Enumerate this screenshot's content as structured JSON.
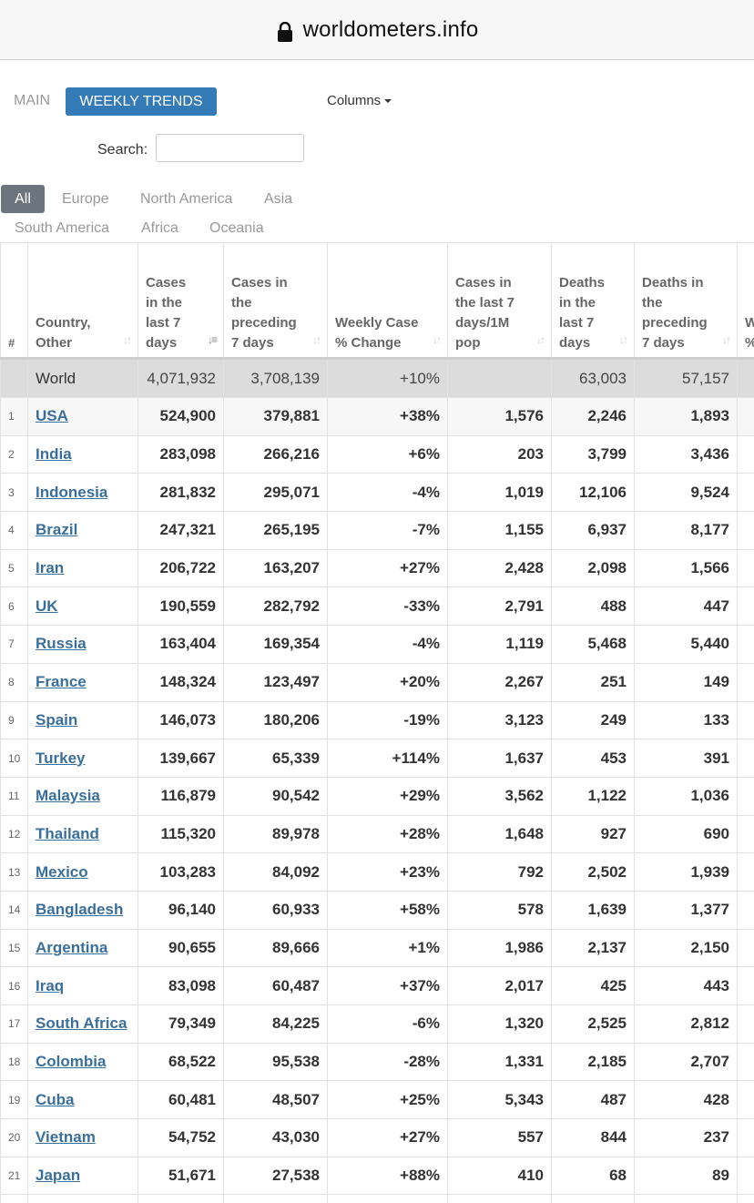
{
  "browser": {
    "url": "worldometers.info"
  },
  "tabs": {
    "main": "MAIN",
    "weekly": "WEEKLY TRENDS",
    "columns": "Columns"
  },
  "search": {
    "label": "Search:",
    "value": "",
    "placeholder": ""
  },
  "regions": [
    "All",
    "Europe",
    "North America",
    "Asia",
    "South America",
    "Africa",
    "Oceania"
  ],
  "table": {
    "headers": [
      {
        "label": "#",
        "sortable": false
      },
      {
        "label": "Country, Other",
        "sortable": true
      },
      {
        "label": "Cases in the last 7 days",
        "sortable": true,
        "active": true
      },
      {
        "label": "Cases in the preceding 7 days",
        "sortable": true
      },
      {
        "label": "Weekly Case % Change",
        "sortable": true
      },
      {
        "label": "Cases in the last 7 days/1M pop",
        "sortable": true
      },
      {
        "label": "Deaths in the last 7 days",
        "sortable": true
      },
      {
        "label": "Deaths in the preceding 7 days",
        "sortable": true
      },
      {
        "label": "W %",
        "sortable": true
      }
    ],
    "world": [
      "",
      "World",
      "4,071,932",
      "3,708,139",
      "+10%",
      "",
      "63,003",
      "57,157",
      ""
    ],
    "rows": [
      [
        "1",
        "USA",
        "524,900",
        "379,881",
        "+38%",
        "1,576",
        "2,246",
        "1,893",
        ""
      ],
      [
        "2",
        "India",
        "283,098",
        "266,216",
        "+6%",
        "203",
        "3,799",
        "3,436",
        ""
      ],
      [
        "3",
        "Indonesia",
        "281,832",
        "295,071",
        "-4%",
        "1,019",
        "12,106",
        "9,524",
        ""
      ],
      [
        "4",
        "Brazil",
        "247,321",
        "265,195",
        "-7%",
        "1,155",
        "6,937",
        "8,177",
        ""
      ],
      [
        "5",
        "Iran",
        "206,722",
        "163,207",
        "+27%",
        "2,428",
        "2,098",
        "1,566",
        ""
      ],
      [
        "6",
        "UK",
        "190,559",
        "282,792",
        "-33%",
        "2,791",
        "488",
        "447",
        ""
      ],
      [
        "7",
        "Russia",
        "163,404",
        "169,354",
        "-4%",
        "1,119",
        "5,468",
        "5,440",
        ""
      ],
      [
        "8",
        "France",
        "148,324",
        "123,497",
        "+20%",
        "2,267",
        "251",
        "149",
        ""
      ],
      [
        "9",
        "Spain",
        "146,073",
        "180,206",
        "-19%",
        "3,123",
        "249",
        "133",
        ""
      ],
      [
        "10",
        "Turkey",
        "139,667",
        "65,339",
        "+114%",
        "1,637",
        "453",
        "391",
        ""
      ],
      [
        "11",
        "Malaysia",
        "116,879",
        "90,542",
        "+29%",
        "3,562",
        "1,122",
        "1,036",
        ""
      ],
      [
        "12",
        "Thailand",
        "115,320",
        "89,978",
        "+28%",
        "1,648",
        "927",
        "690",
        ""
      ],
      [
        "13",
        "Mexico",
        "103,283",
        "84,092",
        "+23%",
        "792",
        "2,502",
        "1,939",
        ""
      ],
      [
        "14",
        "Bangladesh",
        "96,140",
        "60,933",
        "+58%",
        "578",
        "1,639",
        "1,377",
        ""
      ],
      [
        "15",
        "Argentina",
        "90,655",
        "89,666",
        "+1%",
        "1,986",
        "2,137",
        "2,150",
        ""
      ],
      [
        "16",
        "Iraq",
        "83,098",
        "60,487",
        "+37%",
        "2,017",
        "425",
        "443",
        ""
      ],
      [
        "17",
        "South Africa",
        "79,349",
        "84,225",
        "-6%",
        "1,320",
        "2,525",
        "2,812",
        ""
      ],
      [
        "18",
        "Colombia",
        "68,522",
        "95,538",
        "-28%",
        "1,331",
        "2,185",
        "2,707",
        ""
      ],
      [
        "19",
        "Cuba",
        "60,481",
        "48,507",
        "+25%",
        "5,343",
        "487",
        "428",
        ""
      ],
      [
        "20",
        "Vietnam",
        "54,752",
        "43,030",
        "+27%",
        "557",
        "844",
        "237",
        ""
      ],
      [
        "21",
        "Japan",
        "51,671",
        "27,538",
        "+88%",
        "410",
        "68",
        "89",
        ""
      ],
      [
        "",
        "",
        "",
        "",
        "",
        "",
        "",
        "",
        ""
      ]
    ]
  }
}
